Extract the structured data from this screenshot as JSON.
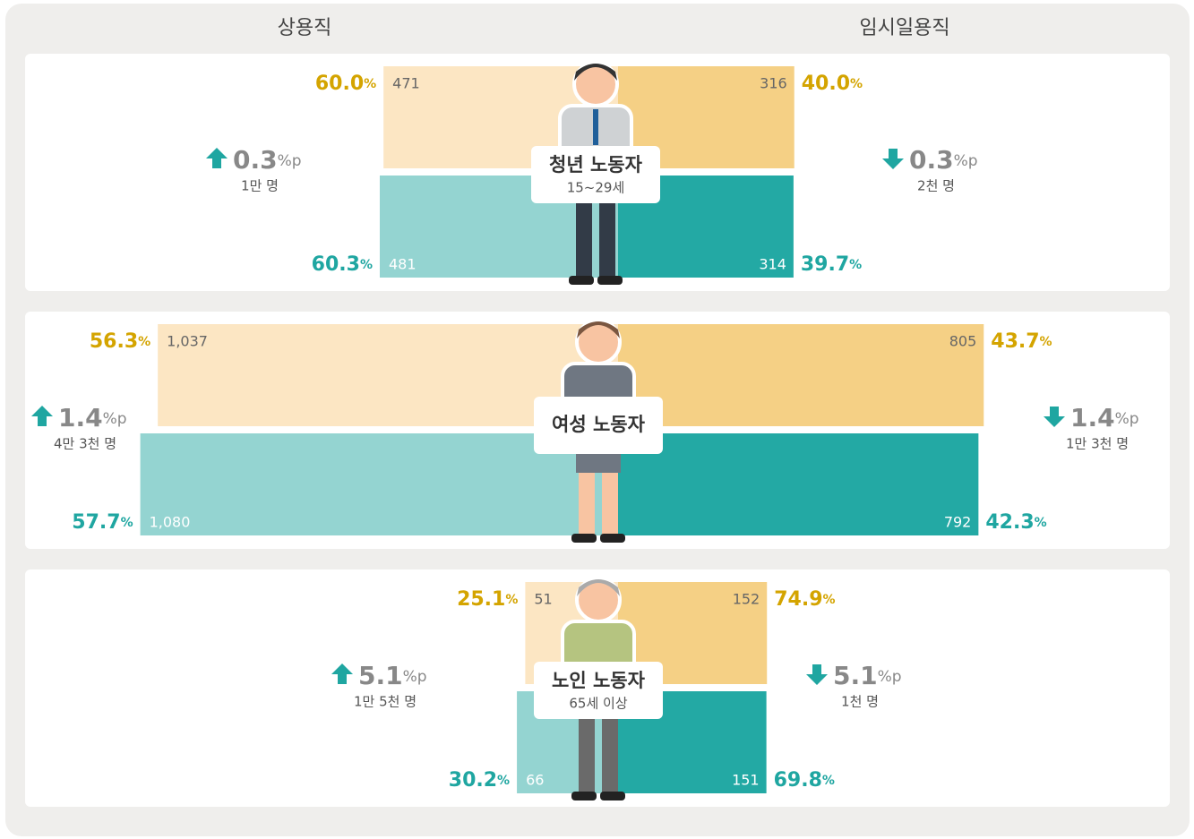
{
  "headers": [
    "상용직",
    "임시일용직"
  ],
  "chart_data": [
    {
      "type": "butterfly",
      "title": "청년 노동자",
      "subtitle": "15~29세",
      "colors": [
        [
          "#fce6c3",
          "#f5d085"
        ],
        [
          "#94d4d1",
          "#23a9a4"
        ]
      ],
      "share_colors": [
        "#d4a400",
        "#1fa6a1"
      ],
      "share_unit": "%",
      "change_unit": "%p",
      "left": {
        "values": [
          471,
          481
        ],
        "value_labels": [
          "471",
          "481"
        ],
        "shares": [
          60.0,
          60.3
        ],
        "share_labels": [
          "60.0",
          "60.3"
        ],
        "change": 0.3,
        "change_direction": "up",
        "change_count": "1만 명"
      },
      "right": {
        "values": [
          316,
          314
        ],
        "value_labels": [
          "316",
          "314"
        ],
        "shares": [
          40.0,
          39.7
        ],
        "share_labels": [
          "40.0",
          "39.7"
        ],
        "change": 0.3,
        "change_direction": "down",
        "change_count": "2천 명"
      }
    },
    {
      "type": "butterfly",
      "title": "여성 노동자",
      "colors": [
        [
          "#fce6c3",
          "#f5d085"
        ],
        [
          "#94d4d1",
          "#23a9a4"
        ]
      ],
      "share_colors": [
        "#d4a400",
        "#1fa6a1"
      ],
      "share_unit": "%",
      "change_unit": "%p",
      "left": {
        "values": [
          1037,
          1080
        ],
        "value_labels": [
          "1,037",
          "1,080"
        ],
        "shares": [
          56.3,
          57.7
        ],
        "share_labels": [
          "56.3",
          "57.7"
        ],
        "change": 1.4,
        "change_direction": "up",
        "change_count": "4만 3천 명"
      },
      "right": {
        "values": [
          805,
          792
        ],
        "value_labels": [
          "805",
          "792"
        ],
        "shares": [
          43.7,
          42.3
        ],
        "share_labels": [
          "43.7",
          "42.3"
        ],
        "change": 1.4,
        "change_direction": "down",
        "change_count": "1만 3천 명"
      }
    },
    {
      "type": "butterfly",
      "title": "노인 노동자",
      "subtitle": "65세 이상",
      "colors": [
        [
          "#fce6c3",
          "#f5d085"
        ],
        [
          "#94d4d1",
          "#23a9a4"
        ]
      ],
      "share_colors": [
        "#d4a400",
        "#1fa6a1"
      ],
      "share_unit": "%",
      "change_unit": "%p",
      "left": {
        "values": [
          51,
          66
        ],
        "value_labels": [
          "51",
          "66"
        ],
        "shares": [
          25.1,
          30.2
        ],
        "share_labels": [
          "25.1",
          "30.2"
        ],
        "change": 5.1,
        "change_direction": "up",
        "change_count": "1만 5천 명"
      },
      "right": {
        "values": [
          152,
          151
        ],
        "value_labels": [
          "152",
          "151"
        ],
        "shares": [
          74.9,
          69.8
        ],
        "share_labels": [
          "74.9",
          "69.8"
        ],
        "change": 5.1,
        "change_direction": "down",
        "change_count": "1천 명"
      }
    }
  ]
}
